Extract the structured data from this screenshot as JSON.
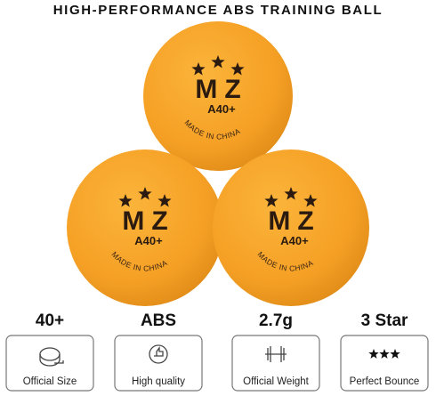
{
  "header": {
    "title": "HIGH-PERFORMANCE ABS TRAINING BALL"
  },
  "ball": {
    "brand": "MZ",
    "model": "A40+",
    "origin": "MADE IN CHINA"
  },
  "features": [
    {
      "value": "40+",
      "label": "Official Size"
    },
    {
      "value": "ABS",
      "label": "High quality"
    },
    {
      "value": "2.7g",
      "label": "Official Weight"
    },
    {
      "value": "3 Star",
      "label": "Perfect Bounce"
    }
  ]
}
